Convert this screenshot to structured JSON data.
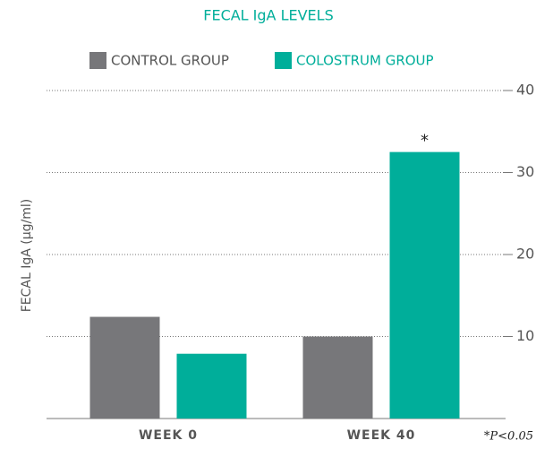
{
  "chart_data": {
    "type": "bar",
    "title": "FECAL IgA LEVELS",
    "y_label": "FECAL IgA (µg/ml)",
    "categories": [
      "WEEK 0",
      "WEEK 40"
    ],
    "series": [
      {
        "name": "CONTROL GROUP",
        "color": "#77777a",
        "values": [
          12.4,
          10
        ]
      },
      {
        "name": "COLOSTRUM GROUP",
        "color": "#00ae9a",
        "values": [
          7.9,
          32.5
        ]
      }
    ],
    "ylim": [
      0,
      40
    ],
    "yticks": [
      10,
      20,
      30,
      40
    ],
    "grid": true,
    "annotations": [
      "*",
      "*P<0.05"
    ]
  }
}
